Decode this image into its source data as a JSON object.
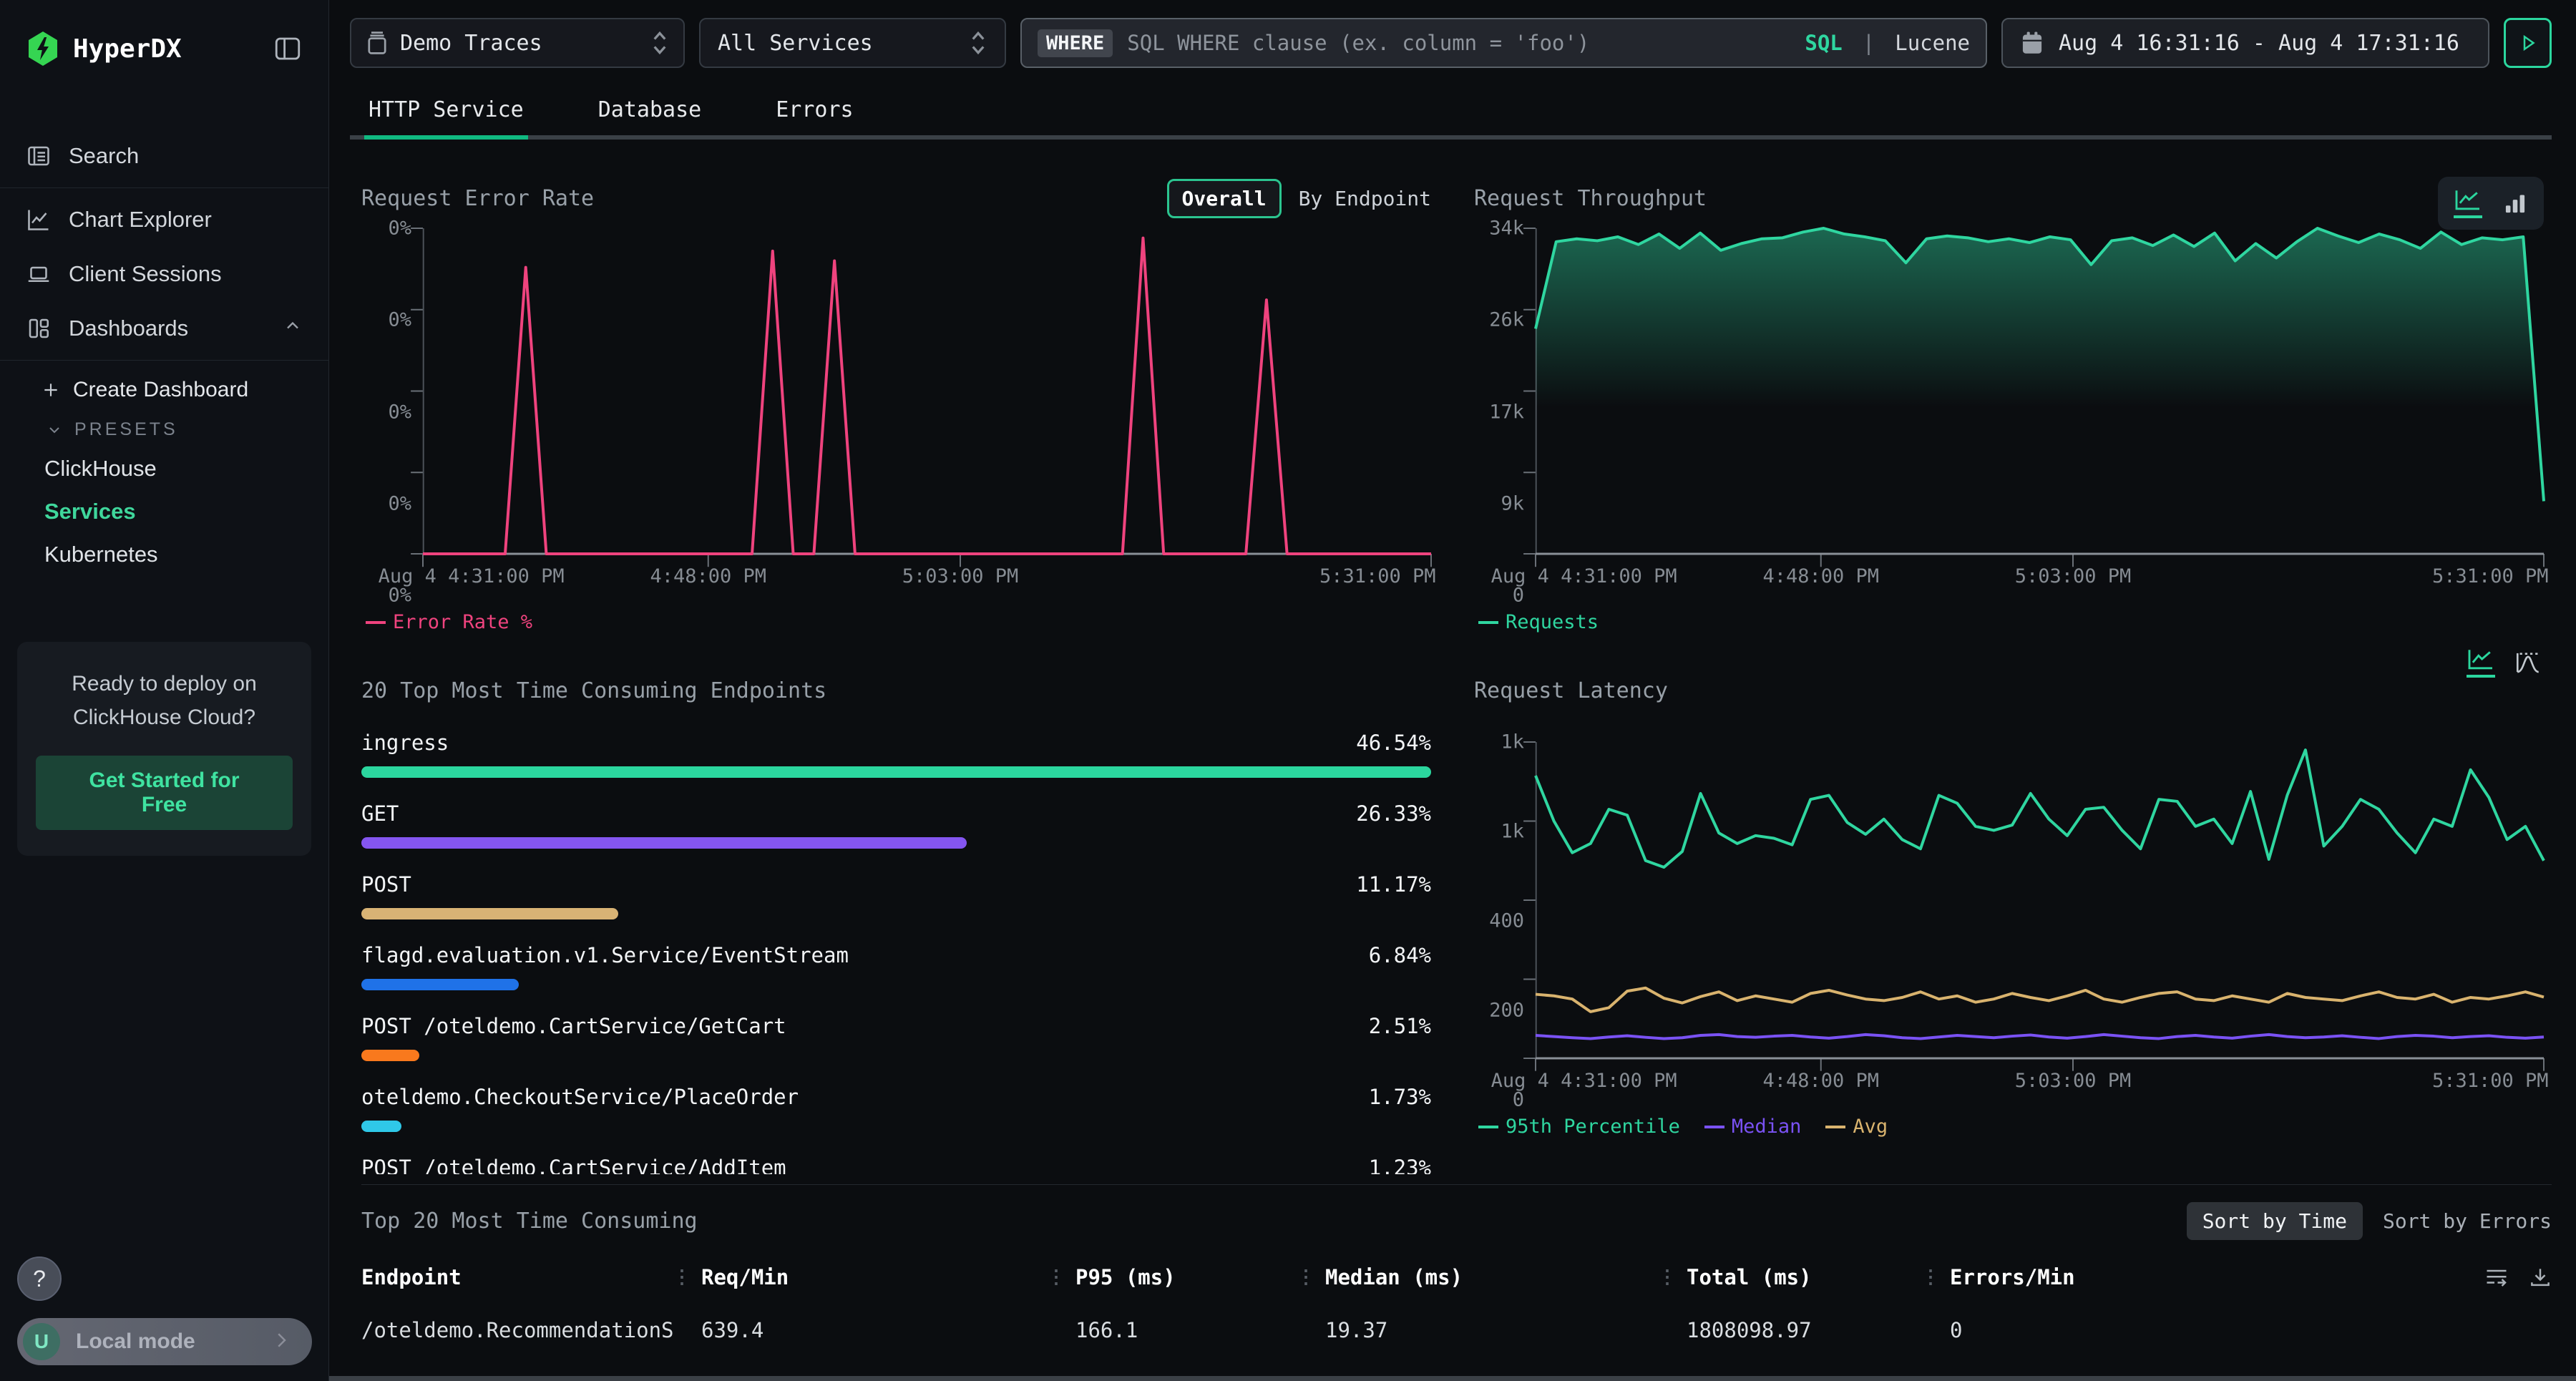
{
  "sidebar": {
    "logo": "HyperDX",
    "nav": [
      {
        "label": "Search"
      },
      {
        "label": "Chart Explorer"
      },
      {
        "label": "Client Sessions"
      },
      {
        "label": "Dashboards"
      }
    ],
    "dashboards": {
      "create": "Create Dashboard",
      "presets_label": "PRESETS",
      "presets": [
        "ClickHouse",
        "Services",
        "Kubernetes"
      ],
      "active_preset": "Services"
    },
    "promo": {
      "line1": "Ready to deploy on",
      "line2": "ClickHouse Cloud?",
      "cta": "Get Started for Free"
    },
    "help": "?",
    "user": {
      "initial": "U",
      "label": "Local mode"
    }
  },
  "topbar": {
    "source_select": "Demo Traces",
    "service_select": "All Services",
    "search": {
      "prefix": "WHERE",
      "placeholder": "SQL WHERE clause (ex. column = 'foo')",
      "sql": "SQL",
      "divider": "|",
      "lucene": "Lucene"
    },
    "time_range": "Aug 4 16:31:16 - Aug 4 17:31:16"
  },
  "tabs": [
    {
      "label": "HTTP Service",
      "active": true
    },
    {
      "label": "Database",
      "active": false
    },
    {
      "label": "Errors",
      "active": false
    }
  ],
  "panels": {
    "error_rate": {
      "title": "Request Error Rate",
      "toggle_overall": "Overall",
      "toggle_by_endpoint": "By Endpoint"
    },
    "throughput": {
      "title": "Request Throughput"
    },
    "endpoints": {
      "title": "20 Top Most Time Consuming Endpoints"
    },
    "latency": {
      "title": "Request Latency"
    }
  },
  "bottom_table": {
    "title": "Top 20 Most Time Consuming",
    "sort_time": "Sort by Time",
    "sort_errors": "Sort by Errors",
    "columns": [
      "Endpoint",
      "Req/Min",
      "P95 (ms)",
      "Median (ms)",
      "Total (ms)",
      "Errors/Min"
    ],
    "rows": [
      [
        "/oteldemo.RecommendationServ",
        "639.4",
        "166.1",
        "19.37",
        "1808098.97",
        "0"
      ]
    ]
  },
  "chart_data": [
    {
      "type": "line",
      "title": "Request Error Rate",
      "x_ticks": {
        "labels": [
          "Aug 4 4:31:00 PM",
          "4:48:00 PM",
          "5:03:00 PM",
          "5:31:00 PM"
        ],
        "positions": [
          0,
          0.283,
          0.533,
          1
        ]
      },
      "y_ticks": {
        "values": [
          0,
          0.25,
          0.5,
          0.75,
          1
        ],
        "labels": [
          "0%",
          "0%",
          "0%",
          "0%",
          "0%"
        ]
      },
      "series": [
        {
          "name": "Error Rate %",
          "color": "#ef437e",
          "area": false,
          "values": [
            0,
            0,
            0,
            0,
            0,
            0.88,
            0,
            0,
            0,
            0,
            0,
            0,
            0,
            0,
            0,
            0,
            0,
            0.93,
            0,
            0,
            0.9,
            0,
            0,
            0,
            0,
            0,
            0,
            0,
            0,
            0,
            0,
            0,
            0,
            0,
            0,
            0.97,
            0,
            0,
            0,
            0,
            0,
            0.78,
            0,
            0,
            0,
            0,
            0,
            0,
            0,
            0
          ]
        }
      ],
      "legend": [
        {
          "label": "Error Rate %",
          "color": "#ef437e"
        }
      ]
    },
    {
      "type": "line",
      "title": "Request Throughput",
      "x_ticks": {
        "labels": [
          "Aug 4 4:31:00 PM",
          "4:48:00 PM",
          "5:03:00 PM",
          "5:31:00 PM"
        ],
        "positions": [
          0,
          0.283,
          0.533,
          1
        ]
      },
      "y_ticks": {
        "values": [
          0,
          8500,
          17000,
          25500,
          34000
        ],
        "labels": [
          "0",
          "9k",
          "17k",
          "26k",
          "34k"
        ]
      },
      "series": [
        {
          "name": "Requests",
          "color": "#2fd6a0",
          "area": true,
          "values": [
            23500,
            32600,
            32900,
            32700,
            33100,
            32300,
            33400,
            31900,
            33500,
            31700,
            32400,
            32900,
            33000,
            33600,
            34000,
            33400,
            33100,
            32700,
            30400,
            32900,
            33200,
            33000,
            32600,
            32900,
            32500,
            33100,
            32800,
            30200,
            32700,
            33000,
            32200,
            33300,
            32100,
            33500,
            30600,
            32400,
            30900,
            32600,
            34100,
            33200,
            32500,
            33400,
            32800,
            31900,
            33600,
            32300,
            33000,
            32800,
            33100,
            5500
          ]
        }
      ],
      "legend": [
        {
          "label": "Requests",
          "color": "#2fd6a0"
        }
      ]
    },
    {
      "type": "bar",
      "title": "20 Top Most Time Consuming Endpoints",
      "categories": [
        "ingress",
        "GET",
        "POST",
        "flagd.evaluation.v1.Service/EventStream",
        "POST /oteldemo.CartService/GetCart",
        "oteldemo.CheckoutService/PlaceOrder",
        "POST /oteldemo.CartService/AddItem"
      ],
      "values": [
        46.54,
        26.33,
        11.17,
        6.84,
        2.51,
        1.73,
        1.23
      ],
      "colors": [
        "#2bd69e",
        "#8455f0",
        "#d8b375",
        "#1f72e8",
        "#f9791d",
        "#2fc8e8",
        null
      ],
      "unit": "%"
    },
    {
      "type": "line",
      "title": "Request Latency",
      "x_ticks": {
        "labels": [
          "Aug 4 4:31:00 PM",
          "4:48:00 PM",
          "5:03:00 PM",
          "5:31:00 PM"
        ],
        "positions": [
          0,
          0.283,
          0.533,
          1
        ]
      },
      "y_ticks": {
        "values": [
          0,
          200,
          400,
          1000,
          1400
        ],
        "labels": [
          "0",
          "200",
          "400",
          "1k",
          "1k"
        ]
      },
      "series": [
        {
          "name": "95th Percentile",
          "color": "#2fd6a0",
          "area": false,
          "values": [
            1230,
            1000,
            760,
            830,
            1060,
            1030,
            700,
            650,
            770,
            1140,
            910,
            830,
            890,
            870,
            820,
            1110,
            1130,
            990,
            900,
            1010,
            860,
            790,
            1130,
            1090,
            960,
            930,
            970,
            1140,
            1010,
            890,
            1060,
            1070,
            930,
            790,
            1110,
            1100,
            960,
            1010,
            830,
            1150,
            710,
            1130,
            1360,
            810,
            960,
            1110,
            1060,
            910,
            760,
            1010,
            960,
            1260,
            1120,
            860,
            960,
            700
          ]
        },
        {
          "name": "Median",
          "color": "#7a52f4",
          "area": false,
          "values": [
            58,
            55,
            52,
            50,
            54,
            57,
            53,
            50,
            52,
            58,
            60,
            55,
            53,
            56,
            58,
            54,
            51,
            55,
            60,
            57,
            52,
            50,
            54,
            58,
            55,
            52,
            56,
            59,
            54,
            51,
            55,
            60,
            56,
            52,
            50,
            55,
            58,
            54,
            51,
            56,
            60,
            55,
            52,
            54,
            57,
            53,
            50,
            55,
            58,
            56,
            52,
            55,
            57,
            53,
            51,
            54
          ]
        },
        {
          "name": "Avg",
          "color": "#d9b36e",
          "area": false,
          "values": [
            162,
            158,
            150,
            118,
            128,
            170,
            178,
            152,
            140,
            156,
            168,
            146,
            158,
            150,
            142,
            164,
            172,
            160,
            150,
            146,
            154,
            168,
            150,
            158,
            142,
            150,
            164,
            154,
            146,
            158,
            172,
            150,
            142,
            154,
            164,
            168,
            150,
            146,
            158,
            150,
            142,
            164,
            154,
            150,
            146,
            158,
            168,
            154,
            150,
            162,
            142,
            154,
            150,
            158,
            168,
            155
          ]
        }
      ],
      "legend": [
        {
          "label": "95th Percentile",
          "color": "#2fd6a0"
        },
        {
          "label": "Median",
          "color": "#7a52f4"
        },
        {
          "label": "Avg",
          "color": "#d9b36e"
        }
      ]
    }
  ]
}
